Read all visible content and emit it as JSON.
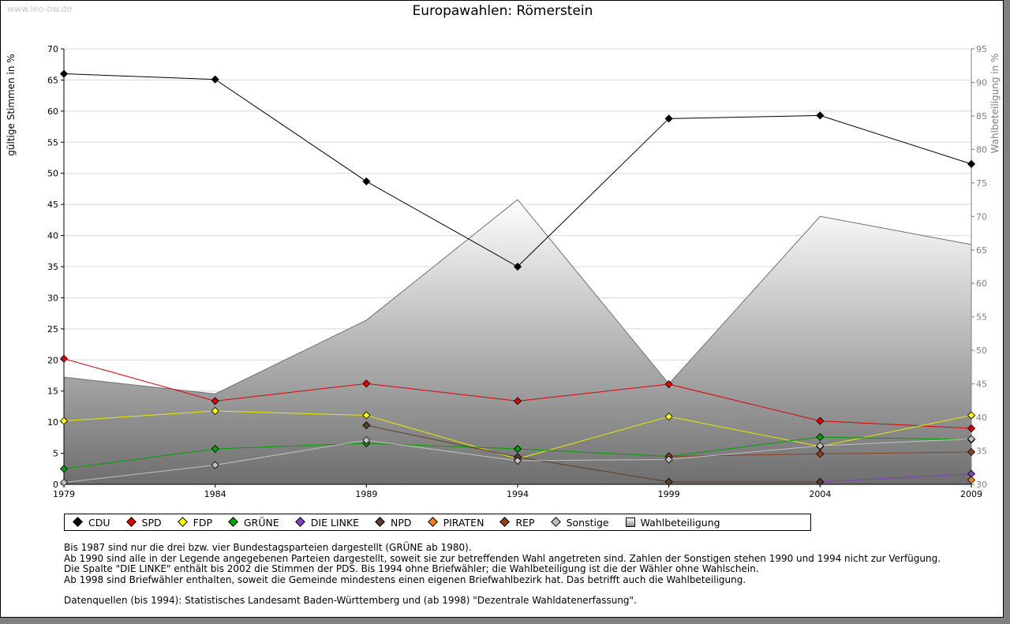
{
  "watermark": "www.leo-bw.de",
  "chart_data": {
    "type": "line",
    "title": "Europawahlen: Römerstein",
    "xlabel": "",
    "ylabel": "gültige Stimmen in %",
    "y2label": "Wahlbeteiligung in %",
    "ylim": [
      0,
      70
    ],
    "y2lim": [
      30,
      95
    ],
    "yticks": [
      "0",
      "5",
      "10",
      "15",
      "20",
      "25",
      "30",
      "35",
      "40",
      "45",
      "50",
      "55",
      "60",
      "65",
      "70"
    ],
    "y2ticks": [
      "30",
      "35",
      "40",
      "45",
      "50",
      "55",
      "60",
      "65",
      "70",
      "75",
      "80",
      "85",
      "90",
      "95"
    ],
    "categories": [
      "1979",
      "1984",
      "1989",
      "1994",
      "1999",
      "2004",
      "2009"
    ],
    "turnout": {
      "name": "Wahlbeteiligung",
      "values": [
        46.0,
        43.5,
        54.5,
        72.5,
        45.0,
        70.0,
        65.8
      ]
    },
    "series": [
      {
        "name": "CDU",
        "color": "#000000",
        "values": [
          66.0,
          65.1,
          48.7,
          35.0,
          58.8,
          59.3,
          51.5
        ]
      },
      {
        "name": "SPD",
        "color": "#e00000",
        "values": [
          20.2,
          13.4,
          16.2,
          13.4,
          16.1,
          10.2,
          9.0
        ]
      },
      {
        "name": "FDP",
        "color": "#ffff00",
        "values": [
          10.2,
          11.8,
          11.1,
          4.1,
          10.9,
          6.1,
          11.1
        ]
      },
      {
        "name": "GRÜNE",
        "color": "#00a000",
        "values": [
          2.5,
          5.7,
          6.6,
          5.7,
          4.5,
          7.6,
          7.2
        ]
      },
      {
        "name": "DIE LINKE",
        "color": "#8040c0",
        "values": [
          null,
          null,
          null,
          null,
          0.4,
          0.4,
          1.7
        ]
      },
      {
        "name": "NPD",
        "color": "#603c28",
        "values": [
          null,
          null,
          9.5,
          4.4,
          0.4,
          0.4,
          null
        ]
      },
      {
        "name": "PIRATEN",
        "color": "#f08020",
        "values": [
          null,
          null,
          null,
          null,
          null,
          null,
          0.7
        ]
      },
      {
        "name": "REP",
        "color": "#904020",
        "values": [
          null,
          null,
          null,
          null,
          4.5,
          4.9,
          5.2
        ]
      },
      {
        "name": "Sonstige",
        "color": "#c0c0c0",
        "values": [
          0.3,
          3.1,
          7.1,
          3.8,
          4.0,
          6.2,
          7.3
        ]
      }
    ],
    "legend_position": "bottom"
  },
  "legend": [
    {
      "label": "CDU",
      "color": "#000000",
      "kind": "diamond"
    },
    {
      "label": "SPD",
      "color": "#e00000",
      "kind": "diamond"
    },
    {
      "label": "FDP",
      "color": "#ffff00",
      "kind": "diamond"
    },
    {
      "label": "GRÜNE",
      "color": "#00a000",
      "kind": "diamond"
    },
    {
      "label": "DIE LINKE",
      "color": "#8040c0",
      "kind": "diamond"
    },
    {
      "label": "NPD",
      "color": "#603c28",
      "kind": "diamond"
    },
    {
      "label": "PIRATEN",
      "color": "#f08020",
      "kind": "diamond"
    },
    {
      "label": "REP",
      "color": "#904020",
      "kind": "diamond"
    },
    {
      "label": "Sonstige",
      "color": "#c0c0c0",
      "kind": "diamond"
    },
    {
      "label": "Wahlbeteiligung",
      "color": "#b0b0b0",
      "kind": "square"
    }
  ],
  "notes": [
    "Bis 1987 sind nur die drei bzw. vier Bundestagsparteien dargestellt (GRÜNE ab 1980).",
    "Ab 1990 sind alle in der Legende angegebenen Parteien dargestellt, soweit sie zur betreffenden Wahl angetreten sind. Zahlen der Sonstigen stehen 1990 und 1994 nicht zur Verfügung.",
    "Die Spalte \"DIE LINKE\" enthält bis 2002 die Stimmen der PDS. Bis 1994 ohne Briefwähler; die Wahlbeteiligung ist die der Wähler ohne Wahlschein.",
    "Ab 1998 sind Briefwähler enthalten, soweit die Gemeinde mindestens einen eigenen Briefwahlbezirk hat. Das betrifft auch die Wahlbeteiligung."
  ],
  "source": "Datenquellen (bis 1994): Statistisches Landesamt Baden-Württemberg und (ab 1998) \"Dezentrale Wahldatenerfassung\"."
}
